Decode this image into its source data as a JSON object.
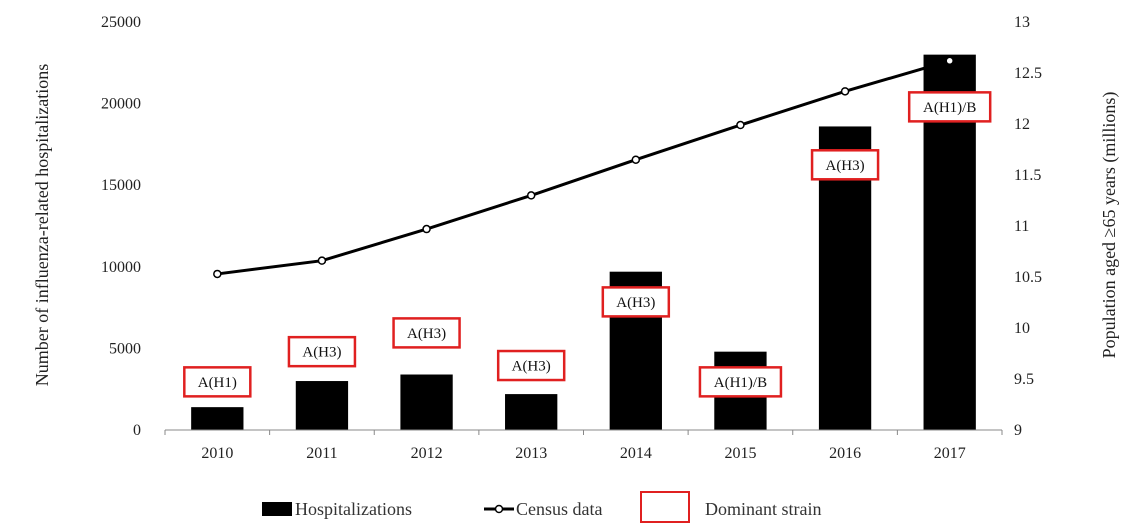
{
  "chart_data": {
    "type": "bar",
    "categories": [
      "2010",
      "2011",
      "2012",
      "2013",
      "2014",
      "2015",
      "2016",
      "2017"
    ],
    "series": [
      {
        "name": "Hospitalizations",
        "type": "bar",
        "axis": "left",
        "values": [
          1400,
          3000,
          3400,
          2200,
          9700,
          4800,
          18600,
          23000
        ]
      },
      {
        "name": "Census data",
        "type": "line",
        "axis": "right",
        "values": [
          10.53,
          10.66,
          10.97,
          11.3,
          11.65,
          11.99,
          12.32,
          12.62
        ]
      }
    ],
    "dominant_strain_legend": "Dominant strain",
    "strains": [
      "A(H1)",
      "A(H3)",
      "A(H3)",
      "A(H3)",
      "A(H3)",
      "A(H1)/B",
      "A(H3)",
      "A(H1)/B"
    ],
    "strain_heights": [
      2950,
      4800,
      5950,
      3950,
      7850,
      2950,
      16250,
      19800
    ],
    "ylabel": "Number of influenza-related hospitalizations",
    "y2label": "Population aged ≥65 years (millions)",
    "ylim": [
      0,
      25000
    ],
    "y2lim": [
      9,
      13
    ],
    "yticks": [
      "0",
      "5000",
      "10000",
      "15000",
      "20000",
      "25000"
    ],
    "y2ticks": [
      "9",
      "9.5",
      "10",
      "10.5",
      "11",
      "11.5",
      "12",
      "12.5",
      "13"
    ],
    "legend_position": "bottom",
    "grid": false,
    "colors": {
      "bar": "#000000",
      "line": "#000000",
      "strain_box": "#e02020"
    }
  }
}
